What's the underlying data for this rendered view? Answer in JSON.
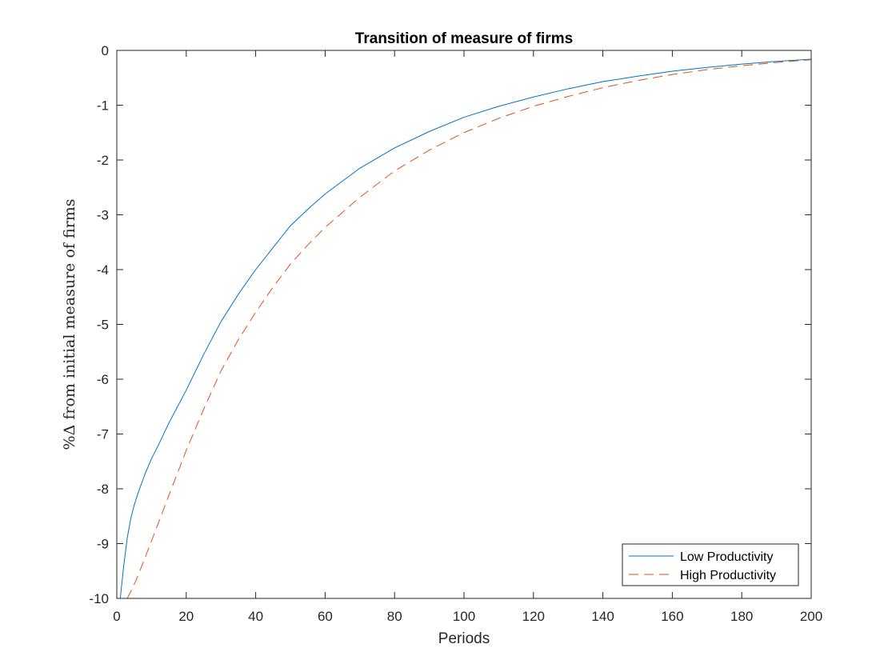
{
  "chart_data": {
    "type": "line",
    "title": "Transition of measure of firms",
    "xlabel": "Periods",
    "ylabel": "%Δ from initial measure of firms",
    "xlim": [
      0,
      200
    ],
    "ylim": [
      -10,
      0
    ],
    "xticks": [
      0,
      20,
      40,
      60,
      80,
      100,
      120,
      140,
      160,
      180,
      200
    ],
    "yticks": [
      -10,
      -9,
      -8,
      -7,
      -6,
      -5,
      -4,
      -3,
      -2,
      -1,
      0
    ],
    "grid": false,
    "legend_position": "bottom-right",
    "series": [
      {
        "name": "Low Productivity",
        "color": "#0072bd",
        "style": "solid",
        "x": [
          1,
          2,
          3,
          4,
          5,
          6,
          8,
          10,
          12,
          15,
          20,
          25,
          30,
          35,
          40,
          45,
          50,
          55,
          60,
          70,
          80,
          90,
          100,
          110,
          120,
          130,
          140,
          150,
          160,
          170,
          180,
          190,
          200
        ],
        "y": [
          -10.0,
          -9.4,
          -8.9,
          -8.55,
          -8.3,
          -8.1,
          -7.75,
          -7.45,
          -7.2,
          -6.8,
          -6.2,
          -5.55,
          -4.95,
          -4.45,
          -4.0,
          -3.6,
          -3.2,
          -2.9,
          -2.62,
          -2.15,
          -1.78,
          -1.48,
          -1.22,
          -1.02,
          -0.85,
          -0.7,
          -0.57,
          -0.47,
          -0.38,
          -0.31,
          -0.25,
          -0.2,
          -0.16
        ]
      },
      {
        "name": "High Productivity",
        "color": "#d95319",
        "style": "dashed",
        "x": [
          3,
          4,
          5,
          6,
          8,
          10,
          12,
          15,
          20,
          25,
          30,
          35,
          40,
          45,
          50,
          55,
          60,
          70,
          80,
          90,
          100,
          110,
          120,
          130,
          140,
          150,
          160,
          170,
          180,
          190,
          200
        ],
        "y": [
          -10.0,
          -9.88,
          -9.75,
          -9.6,
          -9.28,
          -8.95,
          -8.62,
          -8.12,
          -7.3,
          -6.55,
          -5.85,
          -5.28,
          -4.78,
          -4.32,
          -3.9,
          -3.55,
          -3.23,
          -2.68,
          -2.2,
          -1.82,
          -1.5,
          -1.24,
          -1.02,
          -0.84,
          -0.68,
          -0.55,
          -0.44,
          -0.35,
          -0.28,
          -0.22,
          -0.17
        ]
      }
    ]
  }
}
